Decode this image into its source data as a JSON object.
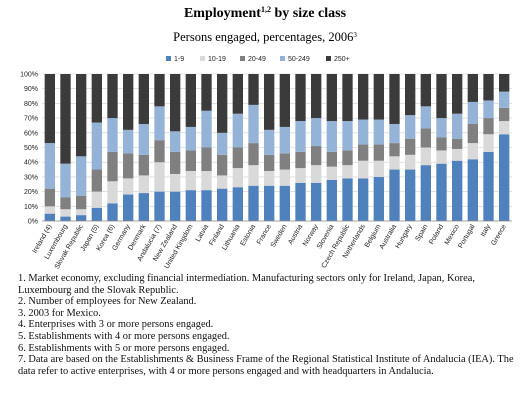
{
  "chart_data": {
    "type": "stacked-bar",
    "title": [
      "Employment",
      "1,2",
      " by size class"
    ],
    "subtitle": [
      "Persons engaged, percentages, 2006",
      "3"
    ],
    "categories": [
      "Ireland (4)",
      "Luxembourg",
      "Slovak Republic",
      "Japan (5)",
      "Korea (6)",
      "Germany",
      "Denmark",
      "Andalucia (7)",
      "New Zealand",
      "United Kingdom",
      "Latvia",
      "Finland",
      "Lithuania",
      "Estonia",
      "France",
      "Sweden",
      "Austria",
      "Norway",
      "Slovenia",
      "Czech Republic",
      "Netherlands",
      "Belgium",
      "Australia",
      "Hungary",
      "Spain",
      "Poland",
      "Mexico",
      "Portugal",
      "Italy",
      "Greece"
    ],
    "series": [
      {
        "name": "1-9",
        "color": "#4f81bd",
        "values": [
          5,
          3,
          4,
          9,
          12,
          18,
          19,
          20,
          20,
          21,
          21,
          22,
          23,
          24,
          24,
          24,
          26,
          26,
          28,
          29,
          29,
          30,
          35,
          35,
          38,
          39,
          41,
          42,
          47,
          59
        ]
      },
      {
        "name": "10-19",
        "color": "#d9d9d9",
        "values": [
          5,
          5,
          4,
          11,
          15,
          11,
          12,
          20,
          12,
          13,
          13,
          9,
          13,
          14,
          10,
          11,
          10,
          12,
          9,
          9,
          12,
          11,
          9,
          10,
          12,
          9,
          8,
          11,
          12,
          9
        ]
      },
      {
        "name": "20-49",
        "color": "#808080",
        "values": [
          12,
          8,
          9,
          15,
          20,
          17,
          14,
          15,
          15,
          14,
          16,
          14,
          14,
          15,
          11,
          11,
          11,
          13,
          10,
          10,
          11,
          11,
          9,
          11,
          13,
          9,
          7,
          13,
          11,
          9
        ]
      },
      {
        "name": "50-249",
        "color": "#95b3d7",
        "values": [
          31,
          23,
          27,
          32,
          23,
          16,
          21,
          23,
          14,
          16,
          25,
          15,
          23,
          26,
          17,
          18,
          21,
          19,
          21,
          20,
          17,
          17,
          13,
          16,
          15,
          13,
          17,
          15,
          12,
          11
        ]
      },
      {
        "name": "250+",
        "color": "#3b3b3b",
        "values": [
          47,
          61,
          56,
          33,
          30,
          38,
          34,
          22,
          39,
          36,
          25,
          40,
          27,
          21,
          38,
          36,
          32,
          30,
          32,
          32,
          31,
          31,
          34,
          28,
          22,
          30,
          27,
          19,
          18,
          12
        ]
      }
    ],
    "ylim": [
      0,
      100
    ],
    "yticks": [
      {
        "value": 0,
        "label": "0%"
      },
      {
        "value": 10,
        "label": "10%"
      },
      {
        "value": 20,
        "label": "20%"
      },
      {
        "value": 30,
        "label": "30%"
      },
      {
        "value": 40,
        "label": "40%"
      },
      {
        "value": 50,
        "label": "50%"
      },
      {
        "value": 60,
        "label": "60%"
      },
      {
        "value": 70,
        "label": "70%"
      },
      {
        "value": 80,
        "label": "80%"
      },
      {
        "value": 90,
        "label": "90%"
      },
      {
        "value": 100,
        "label": "100%"
      }
    ],
    "grid": true,
    "notes": [
      "1. Market economy, excluding financial intermediation. Manufacturing sectors only for Ireland, Japan, Korea, Luxembourg and the Slovak Republic.",
      "2. Number of employees for New Zealand.",
      "3. 2003 for Mexico.",
      "4. Enterprises with 3 or more persons engaged.",
      "5. Establishments with 4 or more persons engaged.",
      "6. Establishments with 5 or more persons engaged.",
      "7. Data are based on the Establishments & Business Frame of the Regional Statistical Institute of Andalucia (IEA). The data refer to active enterprises, with 4 or more persons engaged and with headquarters in Andalucia."
    ]
  }
}
